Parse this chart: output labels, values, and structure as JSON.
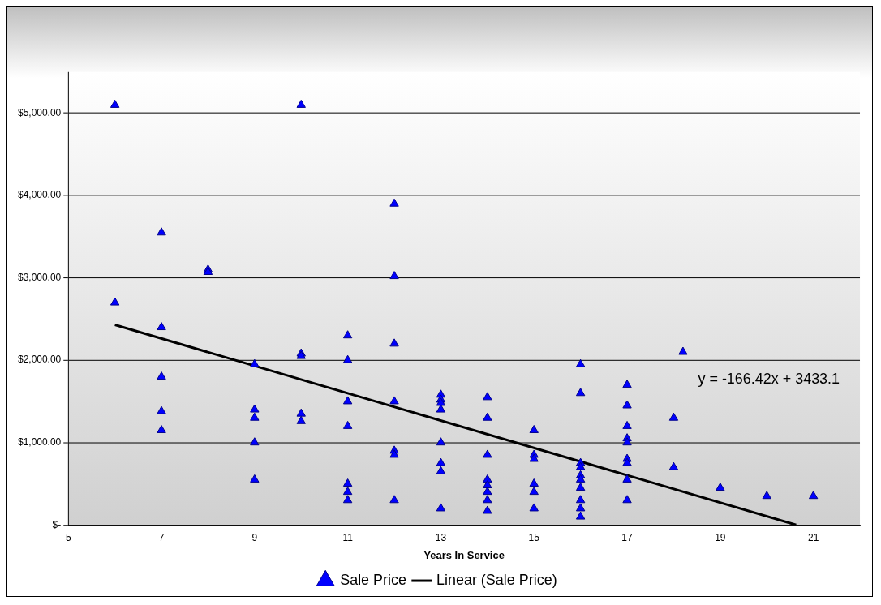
{
  "chart_data": {
    "type": "scatter",
    "xlabel": "Years In Service",
    "xlim": [
      5,
      22
    ],
    "xticks": [
      5,
      7,
      9,
      11,
      13,
      15,
      17,
      19,
      21
    ],
    "ylim": [
      0,
      5500
    ],
    "yticks": [
      {
        "value": 0,
        "label": "$-"
      },
      {
        "value": 1000,
        "label": "$1,000.00"
      },
      {
        "value": 2000,
        "label": "$2,000.00"
      },
      {
        "value": 3000,
        "label": "$3,000.00"
      },
      {
        "value": 4000,
        "label": "$4,000.00"
      },
      {
        "value": 5000,
        "label": "$5,000.00"
      }
    ],
    "grid": "y",
    "legend": "bottom",
    "annotations": [
      "y = -166.42x + 3433.1"
    ],
    "series": [
      {
        "name": "Sale Price",
        "color": "#0000ff",
        "marker": "triangle",
        "x": [
          6,
          6,
          7,
          7,
          7,
          7,
          7,
          8,
          8,
          9,
          9,
          9,
          9,
          9,
          10,
          10,
          10,
          10,
          10,
          11,
          11,
          11,
          11,
          11,
          11,
          11,
          12,
          12,
          12,
          12,
          12,
          12,
          12,
          13,
          13,
          13,
          13,
          13,
          13,
          13,
          13,
          14,
          14,
          14,
          14,
          14,
          14,
          14,
          14,
          15,
          15,
          15,
          15,
          15,
          15,
          16,
          16,
          16,
          16,
          16,
          16,
          16,
          16,
          16,
          16,
          17,
          17,
          17,
          17,
          17,
          17,
          17,
          17,
          17,
          18,
          18,
          18.2,
          19,
          20,
          21
        ],
        "values": [
          5100,
          2700,
          3550,
          2400,
          1800,
          1380,
          1150,
          3100,
          3070,
          1950,
          1400,
          1300,
          1000,
          550,
          5100,
          2080,
          2050,
          1350,
          1260,
          2300,
          2000,
          1500,
          1200,
          500,
          400,
          300,
          3900,
          3020,
          2200,
          1500,
          900,
          850,
          300,
          1580,
          1520,
          1480,
          1400,
          1000,
          750,
          650,
          200,
          1550,
          1300,
          850,
          550,
          480,
          400,
          300,
          170,
          1150,
          850,
          800,
          500,
          400,
          200,
          1950,
          1600,
          750,
          700,
          600,
          550,
          450,
          300,
          200,
          100,
          1700,
          1450,
          1200,
          1050,
          1000,
          800,
          750,
          550,
          300,
          1300,
          700,
          2100,
          450,
          350,
          350
        ]
      },
      {
        "name": "Linear (Sale Price)",
        "type": "line",
        "color": "#000000",
        "marker": "none",
        "line_style": "solid",
        "x": [
          6,
          20.63
        ],
        "values": [
          2430,
          0
        ]
      }
    ]
  }
}
